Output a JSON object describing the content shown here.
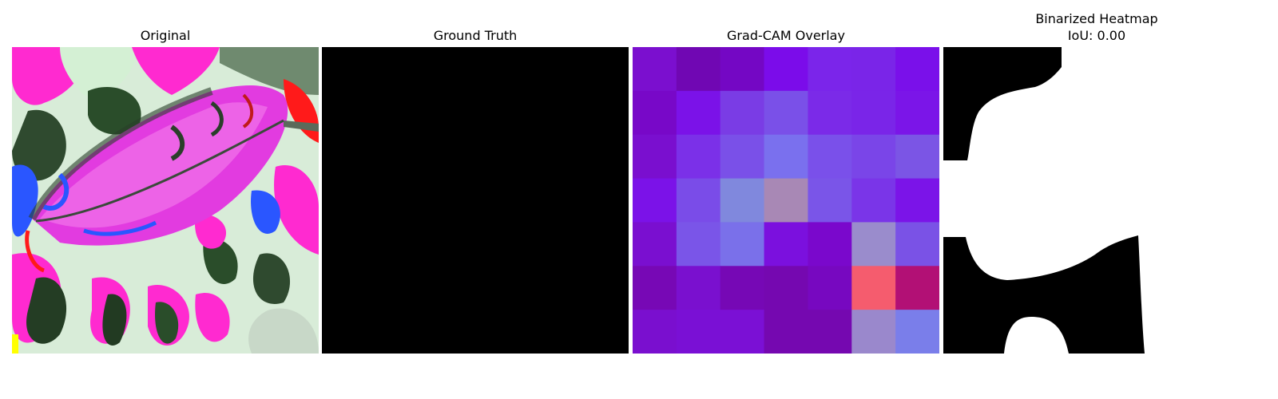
{
  "panels": [
    {
      "title": "Original"
    },
    {
      "title": "Ground Truth"
    },
    {
      "title": "Grad-CAM Overlay"
    },
    {
      "title": "Binarized Heatmap",
      "subtitle": "IoU: 0.00"
    }
  ],
  "gradcam_grid": [
    [
      "#7b0fcf",
      "#7007b3",
      "#7407c4",
      "#7b0cea",
      "#7b25ea",
      "#7a25e8",
      "#7a10ea"
    ],
    [
      "#7808c8",
      "#7b12e8",
      "#7a3ce5",
      "#7a50e8",
      "#7b2ae8",
      "#7a25e8",
      "#7b15e8"
    ],
    [
      "#7a0fcf",
      "#7b30e8",
      "#7a50e8",
      "#7a70ee",
      "#7a50ea",
      "#7a45e8",
      "#7b55e5"
    ],
    [
      "#7b12e8",
      "#7a4ce8",
      "#8088dd",
      "#a888b5",
      "#7a55e8",
      "#7a35e8",
      "#7b14e8"
    ],
    [
      "#7a0fd0",
      "#7a55e8",
      "#7a70ea",
      "#7b10de",
      "#7a08cc",
      "#9a8ccc",
      "#7a52e6"
    ],
    [
      "#7708b5",
      "#7a10cf",
      "#7608b5",
      "#7508b0",
      "#7708c0",
      "#f55c6e",
      "#b21075"
    ],
    [
      "#7a0fcf",
      "#7a10d5",
      "#7b10d5",
      "#7508b0",
      "#7508b0",
      "#9a88cc",
      "#7a7eea"
    ]
  ]
}
